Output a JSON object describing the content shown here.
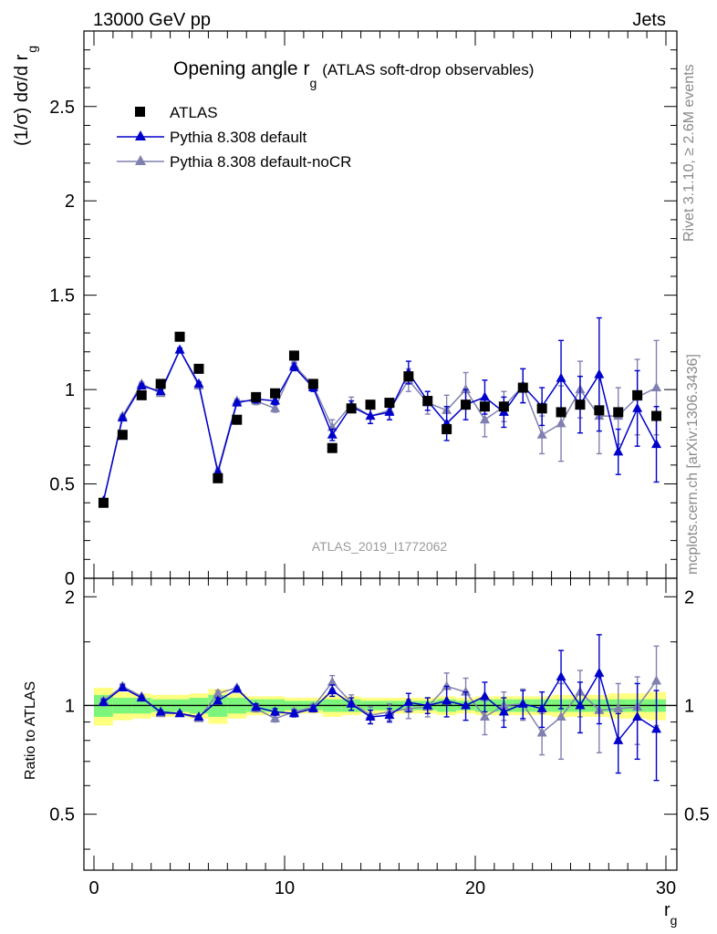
{
  "header": {
    "energy_label": "13000 GeV pp",
    "process_label": "Jets"
  },
  "side_texts": {
    "rivet": "Rivet 3.1.10, ≥ 2.6M events",
    "mcplots": "mcplots.cern.ch [arXiv:1306.3436]"
  },
  "watermark": "ATLAS_2019_I1772062",
  "colors": {
    "data": "#000000",
    "default": "#0000cc",
    "nocr": "#8080b0",
    "band_inner": "#7cf57c",
    "band_outer": "#ffff80"
  },
  "chart_data": [
    {
      "type": "line",
      "title": "Opening angle r_g (ATLAS soft-drop observables)",
      "title_main": "Opening angle r",
      "title_sub": "g",
      "title_suffix": "(ATLAS soft-drop observables)",
      "ylabel": "(1/σ) dσ/d r_g",
      "ylabel_main": "(1/σ) dσ/d r",
      "ylabel_sub": "g",
      "xlim": [
        0,
        30
      ],
      "ylim": [
        0,
        2.9
      ],
      "yticks": [
        "0",
        "0.5",
        "1",
        "1.5",
        "2",
        "2.5"
      ],
      "yticks_values": [
        0,
        0.5,
        1,
        1.5,
        2,
        2.5
      ],
      "legend": [
        "ATLAS",
        "Pythia 8.308 default",
        "Pythia 8.308 default-noCR"
      ],
      "legend_position": "top-left",
      "x": [
        0.5,
        1.5,
        2.5,
        3.5,
        4.5,
        5.5,
        6.5,
        7.5,
        8.5,
        9.5,
        10.5,
        11.5,
        12.5,
        13.5,
        14.5,
        15.5,
        16.5,
        17.5,
        18.5,
        19.5,
        20.5,
        21.5,
        22.5,
        23.5,
        24.5,
        25.5,
        26.5,
        27.5,
        28.5,
        29.5
      ],
      "series": [
        {
          "name": "ATLAS",
          "values": [
            0.4,
            0.76,
            0.97,
            1.03,
            1.28,
            1.11,
            0.53,
            0.84,
            0.96,
            0.98,
            1.18,
            1.03,
            0.69,
            0.9,
            0.92,
            0.93,
            1.07,
            0.94,
            0.79,
            0.92,
            0.91,
            0.91,
            1.01,
            0.9,
            0.88,
            0.92,
            0.89,
            0.88,
            0.97,
            0.86
          ]
        },
        {
          "name": "Pythia 8.308 default",
          "values": [
            0.41,
            0.85,
            1.02,
            0.99,
            1.21,
            1.03,
            0.56,
            0.93,
            0.95,
            0.94,
            1.12,
            1.01,
            0.76,
            0.91,
            0.86,
            0.88,
            1.09,
            0.94,
            0.82,
            0.92,
            0.96,
            0.88,
            1.02,
            0.91,
            1.06,
            0.92,
            1.08,
            0.67,
            0.9,
            0.71
          ],
          "errors": [
            0.01,
            0.01,
            0.01,
            0.01,
            0.01,
            0.01,
            0.01,
            0.01,
            0.02,
            0.02,
            0.02,
            0.02,
            0.03,
            0.03,
            0.04,
            0.04,
            0.06,
            0.05,
            0.09,
            0.08,
            0.09,
            0.08,
            0.09,
            0.1,
            0.2,
            0.15,
            0.3,
            0.12,
            0.2,
            0.2
          ]
        },
        {
          "name": "Pythia 8.308 default-noCR",
          "values": [
            0.41,
            0.86,
            1.03,
            0.98,
            1.21,
            1.02,
            0.57,
            0.94,
            0.94,
            0.9,
            1.13,
            1.02,
            0.8,
            0.92,
            0.86,
            0.89,
            1.05,
            0.93,
            0.89,
            1.0,
            0.84,
            0.91,
            1.02,
            0.76,
            0.82,
            1.0,
            0.86,
            0.86,
            0.96,
            1.01
          ],
          "errors": [
            0.01,
            0.01,
            0.01,
            0.01,
            0.01,
            0.01,
            0.01,
            0.01,
            0.02,
            0.02,
            0.02,
            0.02,
            0.04,
            0.04,
            0.04,
            0.05,
            0.06,
            0.06,
            0.08,
            0.09,
            0.09,
            0.08,
            0.09,
            0.1,
            0.2,
            0.15,
            0.2,
            0.15,
            0.2,
            0.25
          ]
        }
      ]
    },
    {
      "type": "line",
      "ylabel": "Ratio to ATLAS",
      "xlabel": "r_g",
      "xlabel_main": "r",
      "xlabel_sub": "g",
      "xlim": [
        0,
        30
      ],
      "ylim": [
        0.35,
        2.25
      ],
      "yticks": [
        "0.5",
        "1",
        "2"
      ],
      "yticks_values": [
        0.5,
        1,
        2
      ],
      "xticks": [
        "0",
        "10",
        "20",
        "30"
      ],
      "xticks_values": [
        0,
        10,
        20,
        30
      ],
      "band_inner_halfwidth": [
        0.07,
        0.05,
        0.05,
        0.04,
        0.04,
        0.05,
        0.07,
        0.05,
        0.04,
        0.04,
        0.03,
        0.03,
        0.04,
        0.04,
        0.03,
        0.03,
        0.03,
        0.03,
        0.04,
        0.03,
        0.04,
        0.04,
        0.04,
        0.04,
        0.04,
        0.04,
        0.04,
        0.04,
        0.04,
        0.04
      ],
      "band_outer_halfwidth": [
        0.12,
        0.09,
        0.08,
        0.07,
        0.07,
        0.08,
        0.11,
        0.08,
        0.06,
        0.06,
        0.05,
        0.05,
        0.07,
        0.06,
        0.05,
        0.05,
        0.05,
        0.05,
        0.06,
        0.05,
        0.06,
        0.06,
        0.06,
        0.06,
        0.07,
        0.07,
        0.07,
        0.08,
        0.08,
        0.09
      ],
      "series": [
        {
          "name": "Pythia 8.308 default",
          "values": [
            1.02,
            1.12,
            1.05,
            0.96,
            0.95,
            0.93,
            1.03,
            1.11,
            0.99,
            0.96,
            0.95,
            0.98,
            1.1,
            1.01,
            0.93,
            0.94,
            1.02,
            1.0,
            1.03,
            1.0,
            1.06,
            0.96,
            1.01,
            0.98,
            1.2,
            1.0,
            1.23,
            0.8,
            0.93,
            0.86
          ],
          "errors": [
            0.02,
            0.02,
            0.01,
            0.01,
            0.01,
            0.01,
            0.02,
            0.01,
            0.02,
            0.02,
            0.02,
            0.02,
            0.04,
            0.04,
            0.04,
            0.04,
            0.06,
            0.05,
            0.1,
            0.09,
            0.1,
            0.09,
            0.09,
            0.11,
            0.22,
            0.16,
            0.34,
            0.15,
            0.22,
            0.24
          ]
        },
        {
          "name": "Pythia 8.308 default-noCR",
          "values": [
            1.03,
            1.13,
            1.06,
            0.95,
            0.95,
            0.92,
            1.08,
            1.12,
            0.98,
            0.92,
            0.96,
            0.99,
            1.16,
            1.02,
            0.94,
            0.96,
            0.98,
            0.99,
            1.13,
            1.09,
            0.93,
            1.0,
            1.01,
            0.84,
            0.93,
            1.09,
            0.97,
            0.98,
            0.99,
            1.17
          ],
          "errors": [
            0.02,
            0.02,
            0.01,
            0.01,
            0.01,
            0.01,
            0.02,
            0.01,
            0.02,
            0.02,
            0.02,
            0.02,
            0.05,
            0.05,
            0.05,
            0.05,
            0.06,
            0.06,
            0.1,
            0.1,
            0.1,
            0.09,
            0.1,
            0.11,
            0.22,
            0.16,
            0.23,
            0.17,
            0.21,
            0.29
          ]
        }
      ]
    }
  ]
}
